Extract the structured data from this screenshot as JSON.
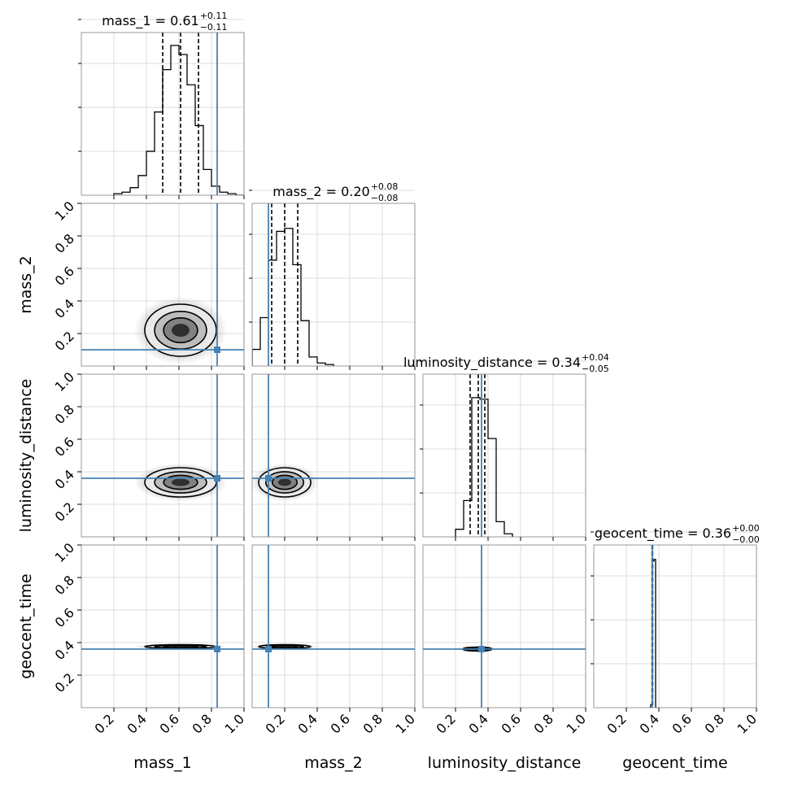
{
  "chart_data": {
    "type": "corner",
    "parameters": [
      "mass_1",
      "mass_2",
      "luminosity_distance",
      "geocent_time"
    ],
    "axis_labels": [
      "mass_1",
      "mass_2",
      "luminosity_distance",
      "geocent_time"
    ],
    "range": [
      0,
      1
    ],
    "ticks": [
      0.2,
      0.4,
      0.6,
      0.8,
      1.0
    ],
    "tick_labels": [
      "0.2",
      "0.4",
      "0.6",
      "0.8",
      "1.0"
    ],
    "grid": true,
    "truth_color": "#4682b4",
    "truths": [
      0.835,
      0.1,
      0.36,
      0.36
    ],
    "titles": [
      {
        "parameter": "mass_1",
        "median": "0.61",
        "plus": "+0.11",
        "minus": "−0.11"
      },
      {
        "parameter": "mass_2",
        "median": "0.20",
        "plus": "+0.08",
        "minus": "−0.08"
      },
      {
        "parameter": "luminosity_distance",
        "median": "0.34",
        "plus": "+0.04",
        "minus": "−0.05"
      },
      {
        "parameter": "geocent_time",
        "median": "0.36",
        "plus": "+0.00",
        "minus": "−0.00"
      }
    ],
    "quantiles": [
      [
        0.5,
        0.61,
        0.72
      ],
      [
        0.12,
        0.2,
        0.28
      ],
      [
        0.29,
        0.34,
        0.38
      ],
      [
        0.358,
        0.36,
        0.362
      ]
    ],
    "histograms": [
      {
        "parameter": "mass_1",
        "bin_edges": [
          0.2,
          0.25,
          0.3,
          0.35,
          0.4,
          0.45,
          0.5,
          0.55,
          0.6,
          0.65,
          0.7,
          0.75,
          0.8,
          0.85,
          0.9,
          0.95,
          1.0
        ],
        "counts": [
          0.01,
          0.02,
          0.05,
          0.13,
          0.29,
          0.55,
          0.83,
          0.99,
          0.93,
          0.73,
          0.46,
          0.17,
          0.06,
          0.02,
          0.01,
          0.0
        ]
      },
      {
        "parameter": "mass_2",
        "bin_edges": [
          0.0,
          0.05,
          0.1,
          0.15,
          0.2,
          0.25,
          0.3,
          0.35,
          0.4,
          0.45,
          0.5
        ],
        "counts": [
          0.11,
          0.32,
          0.7,
          0.89,
          0.91,
          0.67,
          0.3,
          0.06,
          0.02,
          0.01
        ]
      },
      {
        "parameter": "luminosity_distance",
        "bin_edges": [
          0.2,
          0.25,
          0.3,
          0.35,
          0.4,
          0.45,
          0.5,
          0.55
        ],
        "counts": [
          0.05,
          0.24,
          0.92,
          0.91,
          0.65,
          0.1,
          0.02
        ]
      },
      {
        "parameter": "geocent_time",
        "bin_edges": [
          0.34,
          0.35,
          0.36,
          0.37,
          0.38,
          0.39
        ],
        "counts": [
          0.0,
          0.02,
          0.97,
          0.98,
          0.0
        ]
      }
    ],
    "contours_2d": [
      {
        "x": "mass_1",
        "y": "mass_2",
        "center": [
          0.61,
          0.22
        ],
        "sigma": [
          0.11,
          0.08
        ]
      },
      {
        "x": "mass_1",
        "y": "luminosity_distance",
        "center": [
          0.61,
          0.335
        ],
        "sigma": [
          0.11,
          0.045
        ]
      },
      {
        "x": "mass_2",
        "y": "luminosity_distance",
        "center": [
          0.2,
          0.335
        ],
        "sigma": [
          0.08,
          0.045
        ]
      },
      {
        "x": "mass_1",
        "y": "geocent_time",
        "center": [
          0.61,
          0.375
        ],
        "sigma": [
          0.11,
          0.006
        ]
      },
      {
        "x": "mass_2",
        "y": "geocent_time",
        "center": [
          0.2,
          0.375
        ],
        "sigma": [
          0.08,
          0.006
        ]
      },
      {
        "x": "luminosity_distance",
        "y": "geocent_time",
        "center": [
          0.335,
          0.36
        ],
        "sigma": [
          0.045,
          0.006
        ]
      }
    ]
  }
}
